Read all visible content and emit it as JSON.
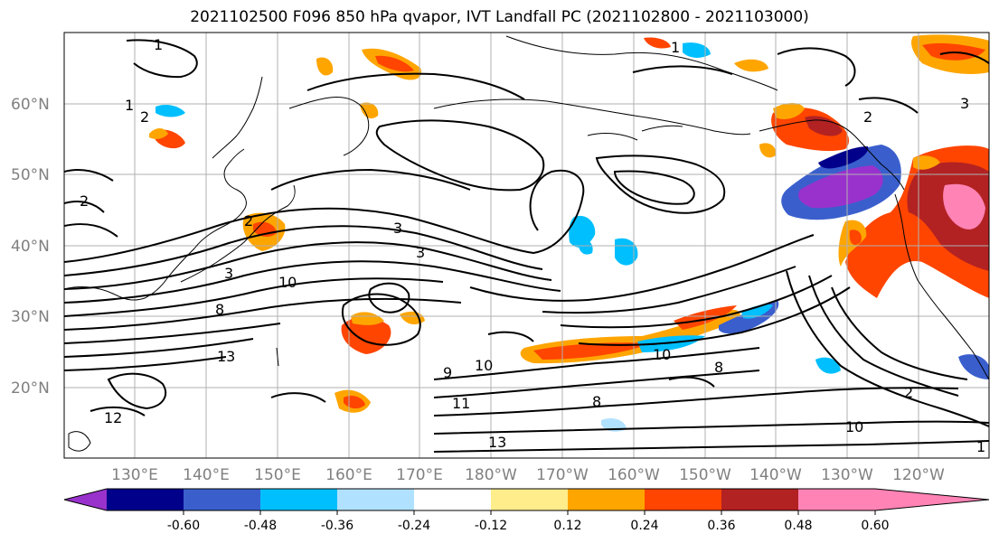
{
  "title": "2021102500 F096 850 hPa qvapor, IVT Landfall PC (2021102800 - 2021103000)",
  "lat_labels": [
    "60°N",
    "50°N",
    "40°N",
    "30°N",
    "20°N"
  ],
  "lon_labels": [
    "130°E",
    "140°E",
    "150°E",
    "160°E",
    "170°E",
    "180°W",
    "170°W",
    "160°W",
    "150°W",
    "140°W",
    "130°W",
    "120°W"
  ],
  "colorbar": {
    "colors": [
      "#9932cc",
      "#00008b",
      "#3a5fcd",
      "#00bfff",
      "#b0e2ff",
      "#ffffff",
      "#ffec8b",
      "#ffa500",
      "#ff4500",
      "#b22222",
      "#ff83b5"
    ],
    "tick_labels": [
      "-0.60",
      "-0.48",
      "-0.36",
      "-0.24",
      "-0.12",
      "0.12",
      "0.24",
      "0.36",
      "0.48",
      "0.60"
    ]
  },
  "contour_labels": [
    "1",
    "2",
    "2",
    "1",
    "3",
    "2",
    "3",
    "3",
    "10",
    "8",
    "13",
    "9",
    "10",
    "11",
    "12",
    "13",
    "8",
    "10",
    "8",
    "10",
    "2",
    "1",
    "3",
    "2",
    "1"
  ]
}
